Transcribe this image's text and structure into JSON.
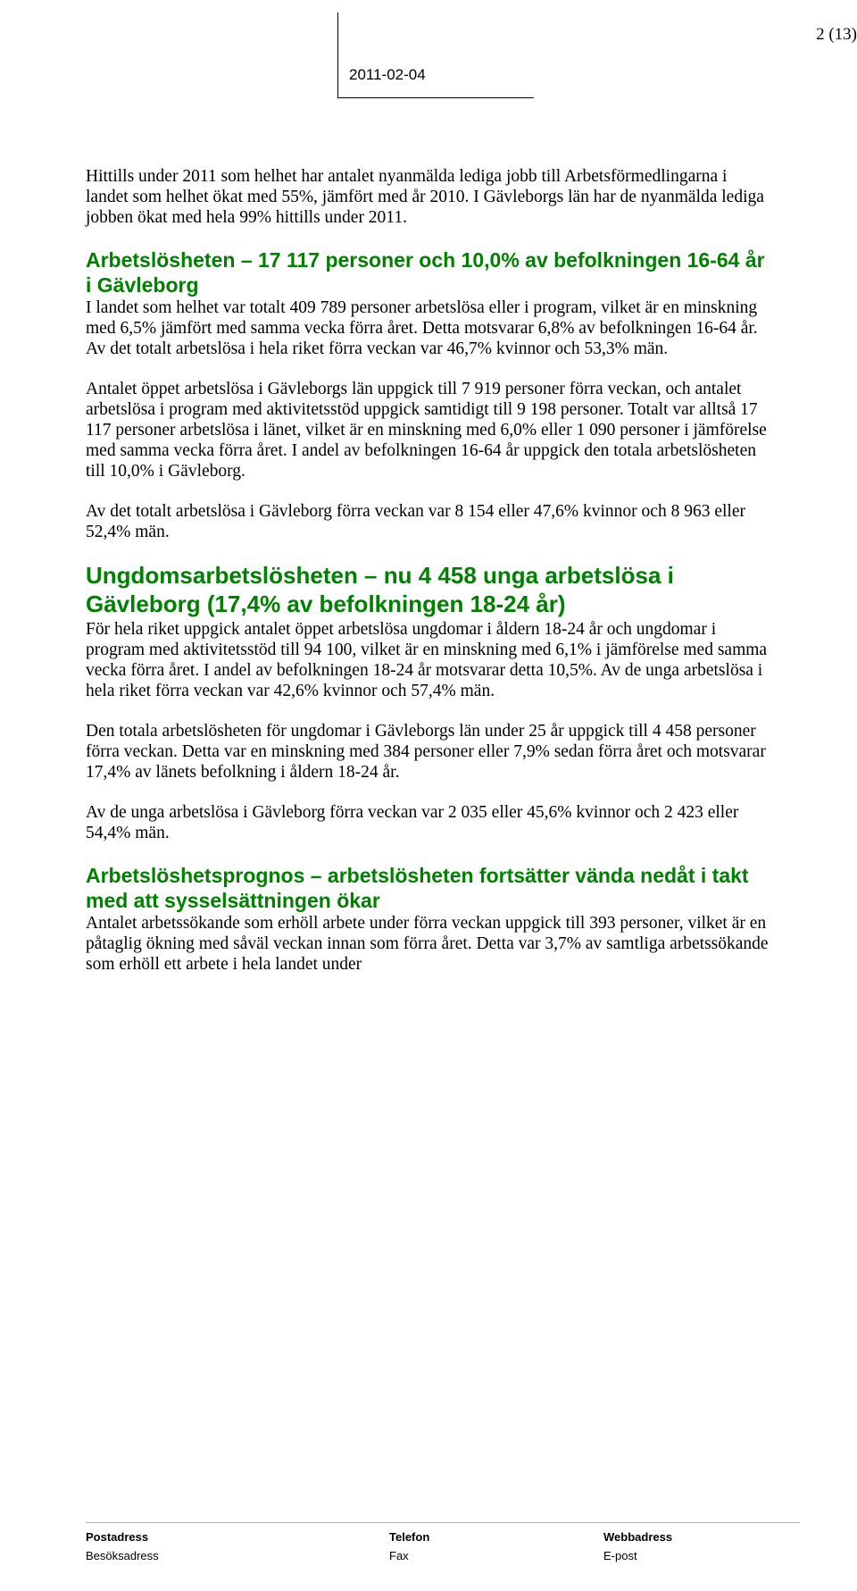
{
  "page_number": "2 (13)",
  "header_date": "2011-02-04",
  "colors": {
    "heading": "#008000",
    "text": "#000000",
    "background": "#ffffff"
  },
  "intro_paragraph": "Hittills under 2011 som helhet har antalet nyanmälda lediga jobb till Arbetsförmedlingarna i landet som helhet ökat med 55%, jämfört med år 2010. I Gävleborgs län har de nyanmälda lediga jobben ökat med hela 99% hittills under 2011.",
  "section1": {
    "heading": "Arbetslösheten – 17 117 personer och 10,0% av befolkningen 16-64 år i Gävleborg",
    "p1": "I landet som helhet var totalt 409 789 personer arbetslösa eller i program, vilket är en minskning med 6,5% jämfört med samma vecka förra året. Detta motsvarar 6,8% av befolkningen 16-64 år. Av det totalt arbetslösa i hela riket förra veckan var 46,7% kvinnor och 53,3% män.",
    "p2": "Antalet öppet arbetslösa i Gävleborgs län uppgick till 7 919 personer förra veckan, och antalet arbetslösa i program med aktivitetsstöd uppgick samtidigt till 9 198 personer. Totalt var alltså 17 117 personer arbetslösa i länet, vilket är en minskning med 6,0% eller 1 090 personer i jämförelse med samma vecka förra året. I andel av befolkningen 16-64 år uppgick den totala arbetslösheten till 10,0% i Gävleborg.",
    "p3": "Av det totalt arbetslösa i Gävleborg förra veckan var 8 154 eller 47,6% kvinnor och 8 963 eller 52,4% män."
  },
  "section2": {
    "heading": "Ungdomsarbetslösheten – nu 4 458 unga arbetslösa i Gävleborg (17,4% av befolkningen 18-24 år)",
    "p1": "För hela riket uppgick antalet öppet arbetslösa ungdomar i åldern 18-24 år och ungdomar i program med aktivitetsstöd till 94 100, vilket är en minskning med 6,1% i jämförelse med samma vecka förra året. I andel av befolkningen 18-24 år motsvarar detta 10,5%. Av de unga arbetslösa i hela riket förra veckan var 42,6% kvinnor och 57,4% män.",
    "p2": "Den totala arbetslösheten för ungdomar i Gävleborgs län under 25 år uppgick till 4 458 personer förra veckan. Detta var en minskning med 384 personer eller 7,9% sedan förra året och motsvarar 17,4% av länets befolkning i åldern 18-24 år.",
    "p3": "Av de unga arbetslösa i Gävleborg förra veckan var 2 035 eller 45,6% kvinnor och 2 423 eller 54,4% män."
  },
  "section3": {
    "heading": "Arbetslöshetsprognos – arbetslösheten fortsätter vända nedåt i takt med att sysselsättningen ökar",
    "p1": "Antalet arbetssökande som erhöll arbete under förra veckan uppgick till 393 personer, vilket är en påtaglig ökning med såväl veckan innan som förra året. Detta var 3,7% av samtliga arbetssökande som erhöll ett arbete i hela landet under"
  },
  "footer": {
    "row1": {
      "c1": "Postadress",
      "c2": "Telefon",
      "c3": "Webbadress"
    },
    "row2": {
      "c1": "Besöksadress",
      "c2": "Fax",
      "c3": "E-post"
    }
  }
}
